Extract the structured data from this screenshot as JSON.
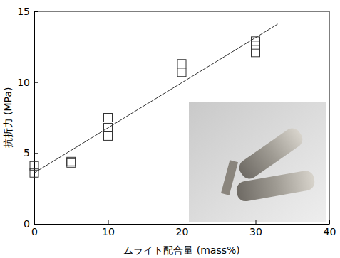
{
  "chart_data": {
    "type": "scatter",
    "xlabel": "ムライト配合量 (mass%)",
    "ylabel": "抗折力 (MPa)",
    "xlim": [
      0,
      40
    ],
    "ylim": [
      0,
      15
    ],
    "xticks": [
      0,
      10,
      20,
      30,
      40
    ],
    "yticks": [
      0,
      5,
      10,
      15
    ],
    "series": [
      {
        "type": "scatter",
        "marker": "square",
        "color": "#333333",
        "x": [
          0,
          0,
          5,
          5,
          10,
          10,
          10,
          20,
          20,
          30,
          30,
          30
        ],
        "values": [
          3.6,
          4.1,
          4.3,
          4.4,
          6.2,
          6.8,
          7.5,
          10.7,
          11.3,
          12.1,
          12.6,
          12.9
        ]
      },
      {
        "type": "line",
        "line_style": "solid",
        "color": "#333333",
        "x": [
          0,
          33
        ],
        "values": [
          3.6,
          14.1
        ]
      }
    ]
  }
}
